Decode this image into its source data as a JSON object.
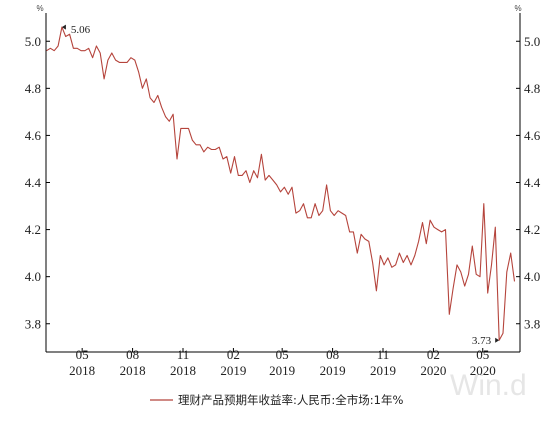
{
  "chart_data": {
    "type": "line",
    "left_unit": "%",
    "right_unit": "%",
    "ylim": [
      3.68,
      5.12
    ],
    "y_ticks": [
      3.8,
      4.0,
      4.2,
      4.4,
      4.6,
      4.8,
      5.0
    ],
    "y_tick_labels": [
      "3.8",
      "4.0",
      "4.2",
      "4.4",
      "4.6",
      "4.8",
      "5.0"
    ],
    "x_ticks": [
      {
        "month": "05",
        "year": "2018",
        "date": "2018-05"
      },
      {
        "month": "08",
        "year": "2018",
        "date": "2018-08"
      },
      {
        "month": "11",
        "year": "2018",
        "date": "2018-11"
      },
      {
        "month": "02",
        "year": "2019",
        "date": "2019-02"
      },
      {
        "month": "05",
        "year": "2019",
        "date": "2019-05"
      },
      {
        "month": "08",
        "year": "2019",
        "date": "2019-08"
      },
      {
        "month": "11",
        "year": "2019",
        "date": "2019-11"
      },
      {
        "month": "02",
        "year": "2020",
        "date": "2020-02"
      },
      {
        "month": "05",
        "year": "2020",
        "date": "2020-05"
      }
    ],
    "x_range": [
      "2018-02-24",
      "2020-07-08"
    ],
    "series": [
      {
        "name": "理财产品预期年收益率:人民币:全市场:1年%",
        "color": "#b5443c",
        "points": [
          [
            "2018-02-25",
            4.96
          ],
          [
            "2018-03-04",
            4.97
          ],
          [
            "2018-03-11",
            4.96
          ],
          [
            "2018-03-18",
            4.98
          ],
          [
            "2018-03-25",
            5.06
          ],
          [
            "2018-04-01",
            5.02
          ],
          [
            "2018-04-08",
            5.03
          ],
          [
            "2018-04-15",
            4.97
          ],
          [
            "2018-04-22",
            4.97
          ],
          [
            "2018-04-29",
            4.96
          ],
          [
            "2018-05-06",
            4.96
          ],
          [
            "2018-05-13",
            4.97
          ],
          [
            "2018-05-20",
            4.93
          ],
          [
            "2018-05-27",
            4.98
          ],
          [
            "2018-06-03",
            4.95
          ],
          [
            "2018-06-10",
            4.84
          ],
          [
            "2018-06-17",
            4.92
          ],
          [
            "2018-06-24",
            4.95
          ],
          [
            "2018-07-01",
            4.92
          ],
          [
            "2018-07-08",
            4.91
          ],
          [
            "2018-07-15",
            4.91
          ],
          [
            "2018-07-22",
            4.91
          ],
          [
            "2018-07-29",
            4.93
          ],
          [
            "2018-08-05",
            4.92
          ],
          [
            "2018-08-12",
            4.87
          ],
          [
            "2018-08-19",
            4.8
          ],
          [
            "2018-08-26",
            4.84
          ],
          [
            "2018-09-02",
            4.76
          ],
          [
            "2018-09-09",
            4.74
          ],
          [
            "2018-09-16",
            4.77
          ],
          [
            "2018-09-23",
            4.72
          ],
          [
            "2018-09-30",
            4.68
          ],
          [
            "2018-10-07",
            4.66
          ],
          [
            "2018-10-14",
            4.69
          ],
          [
            "2018-10-21",
            4.5
          ],
          [
            "2018-10-28",
            4.63
          ],
          [
            "2018-11-04",
            4.63
          ],
          [
            "2018-11-11",
            4.63
          ],
          [
            "2018-11-18",
            4.58
          ],
          [
            "2018-11-25",
            4.56
          ],
          [
            "2018-12-02",
            4.56
          ],
          [
            "2018-12-09",
            4.53
          ],
          [
            "2018-12-16",
            4.55
          ],
          [
            "2018-12-23",
            4.54
          ],
          [
            "2018-12-30",
            4.54
          ],
          [
            "2019-01-06",
            4.55
          ],
          [
            "2019-01-13",
            4.5
          ],
          [
            "2019-01-20",
            4.51
          ],
          [
            "2019-01-27",
            4.44
          ],
          [
            "2019-02-03",
            4.51
          ],
          [
            "2019-02-10",
            4.43
          ],
          [
            "2019-02-17",
            4.43
          ],
          [
            "2019-02-24",
            4.45
          ],
          [
            "2019-03-03",
            4.4
          ],
          [
            "2019-03-10",
            4.45
          ],
          [
            "2019-03-17",
            4.42
          ],
          [
            "2019-03-24",
            4.52
          ],
          [
            "2019-03-31",
            4.41
          ],
          [
            "2019-04-07",
            4.43
          ],
          [
            "2019-04-14",
            4.41
          ],
          [
            "2019-04-21",
            4.39
          ],
          [
            "2019-04-28",
            4.36
          ],
          [
            "2019-05-05",
            4.38
          ],
          [
            "2019-05-12",
            4.35
          ],
          [
            "2019-05-19",
            4.38
          ],
          [
            "2019-05-26",
            4.27
          ],
          [
            "2019-06-02",
            4.28
          ],
          [
            "2019-06-09",
            4.31
          ],
          [
            "2019-06-16",
            4.25
          ],
          [
            "2019-06-23",
            4.25
          ],
          [
            "2019-06-30",
            4.31
          ],
          [
            "2019-07-07",
            4.26
          ],
          [
            "2019-07-14",
            4.28
          ],
          [
            "2019-07-21",
            4.39
          ],
          [
            "2019-07-28",
            4.28
          ],
          [
            "2019-08-04",
            4.26
          ],
          [
            "2019-08-11",
            4.28
          ],
          [
            "2019-08-18",
            4.27
          ],
          [
            "2019-08-25",
            4.26
          ],
          [
            "2019-09-01",
            4.19
          ],
          [
            "2019-09-08",
            4.19
          ],
          [
            "2019-09-15",
            4.1
          ],
          [
            "2019-09-22",
            4.18
          ],
          [
            "2019-09-29",
            4.16
          ],
          [
            "2019-10-06",
            4.15
          ],
          [
            "2019-10-13",
            4.06
          ],
          [
            "2019-10-20",
            3.94
          ],
          [
            "2019-10-27",
            4.09
          ],
          [
            "2019-11-03",
            4.05
          ],
          [
            "2019-11-10",
            4.08
          ],
          [
            "2019-11-17",
            4.04
          ],
          [
            "2019-11-24",
            4.05
          ],
          [
            "2019-12-01",
            4.1
          ],
          [
            "2019-12-08",
            4.06
          ],
          [
            "2019-12-15",
            4.09
          ],
          [
            "2019-12-22",
            4.05
          ],
          [
            "2019-12-29",
            4.09
          ],
          [
            "2020-01-05",
            4.15
          ],
          [
            "2020-01-12",
            4.23
          ],
          [
            "2020-01-19",
            4.14
          ],
          [
            "2020-01-26",
            4.24
          ],
          [
            "2020-02-02",
            4.21
          ],
          [
            "2020-02-09",
            4.2
          ],
          [
            "2020-02-16",
            4.19
          ],
          [
            "2020-02-23",
            4.2
          ],
          [
            "2020-03-01",
            3.84
          ],
          [
            "2020-03-08",
            3.95
          ],
          [
            "2020-03-15",
            4.05
          ],
          [
            "2020-03-22",
            4.02
          ],
          [
            "2020-03-29",
            3.96
          ],
          [
            "2020-04-05",
            4.01
          ],
          [
            "2020-04-12",
            4.13
          ],
          [
            "2020-04-19",
            4.01
          ],
          [
            "2020-04-26",
            4.0
          ],
          [
            "2020-05-03",
            4.31
          ],
          [
            "2020-05-10",
            3.93
          ],
          [
            "2020-05-17",
            4.05
          ],
          [
            "2020-05-24",
            4.21
          ],
          [
            "2020-05-31",
            3.73
          ],
          [
            "2020-06-07",
            3.76
          ],
          [
            "2020-06-14",
            4.02
          ],
          [
            "2020-06-21",
            4.1
          ],
          [
            "2020-06-28",
            3.98
          ]
        ]
      }
    ],
    "annotations": [
      {
        "label": "5.06",
        "date": "2018-03-25",
        "value": 5.06,
        "side": "right"
      },
      {
        "label": "3.73",
        "date": "2020-05-31",
        "value": 3.73,
        "side": "left"
      }
    ],
    "legend": {
      "position": "bottom",
      "label": "理财产品预期年收益率:人民币:全市场:1年%"
    },
    "grid": false,
    "watermark": "Win.d"
  }
}
